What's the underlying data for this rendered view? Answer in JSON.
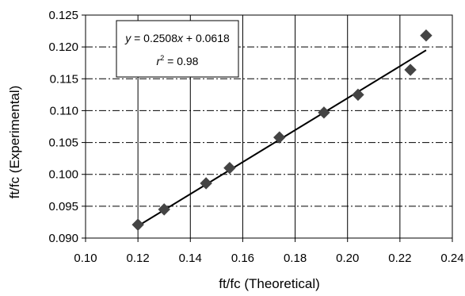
{
  "chart_data": {
    "type": "scatter",
    "xlabel": "ft/fc (Theoretical)",
    "ylabel": "ft/fc (Experimental)",
    "xlim": [
      0.1,
      0.24
    ],
    "ylim": [
      0.09,
      0.125
    ],
    "x_ticks": [
      "0.10",
      "0.12",
      "0.14",
      "0.16",
      "0.18",
      "0.20",
      "0.22",
      "0.24"
    ],
    "y_ticks": [
      "0.090",
      "0.095",
      "0.100",
      "0.105",
      "0.110",
      "0.115",
      "0.120",
      "0.125"
    ],
    "x_tick_values": [
      0.1,
      0.12,
      0.14,
      0.16,
      0.18,
      0.2,
      0.22,
      0.24
    ],
    "y_tick_values": [
      0.09,
      0.095,
      0.1,
      0.105,
      0.11,
      0.115,
      0.12,
      0.125
    ],
    "grid": {
      "vertical": "solid",
      "horizontal": "dash-dot"
    },
    "series": [
      {
        "marker": "diamond",
        "color": "#444444",
        "x": [
          0.12,
          0.13,
          0.146,
          0.155,
          0.174,
          0.191,
          0.204,
          0.224,
          0.23
        ],
        "y": [
          0.0921,
          0.0945,
          0.0986,
          0.101,
          0.1058,
          0.1097,
          0.1125,
          0.1164,
          0.1218
        ]
      }
    ],
    "trendline": {
      "slope": 0.2508,
      "intercept": 0.0618,
      "x_range": [
        0.12,
        0.23
      ],
      "color": "#000000"
    },
    "annotation": {
      "equation_parts": {
        "y": "y",
        "eq": " = 0.2508",
        "x": "x",
        "rest": " + 0.0618"
      },
      "r2_parts": {
        "r": "r",
        "sup": "2",
        "rest": " = 0.98"
      },
      "position": "top-left"
    }
  }
}
